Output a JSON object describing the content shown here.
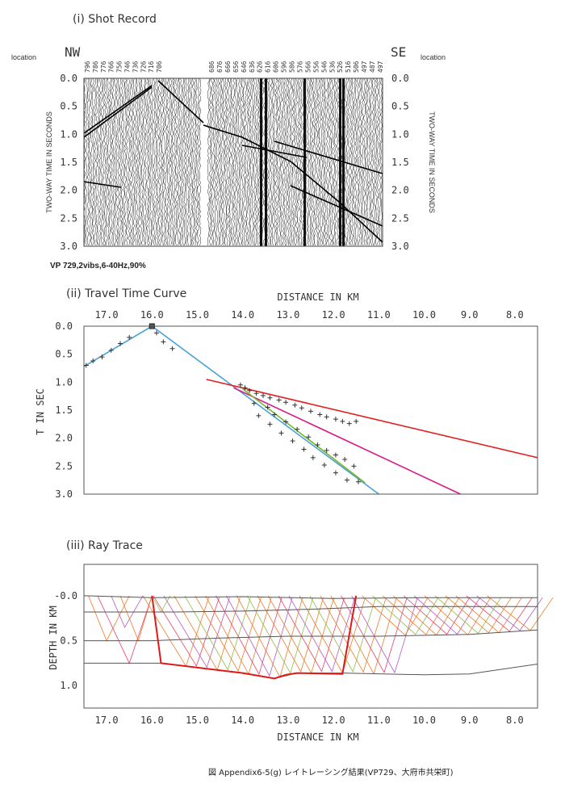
{
  "shot": {
    "title": "(i)  Shot Record",
    "nw": "NW",
    "se": "SE",
    "location_label": "location",
    "station_labels": [
      "796",
      "786",
      "776",
      "766",
      "756",
      "746",
      "736",
      "726",
      "716",
      "706",
      "686",
      "676",
      "666",
      "656",
      "646",
      "636",
      "626",
      "616",
      "606",
      "596",
      "586",
      "576",
      "566",
      "556",
      "546",
      "536",
      "526",
      "516",
      "506",
      "497",
      "487",
      "497"
    ],
    "time_ticks": [
      "0.0",
      "0.5",
      "1.0",
      "1.5",
      "2.0",
      "2.5",
      "3.0"
    ],
    "ylabel": "TWO-WAY TIME IN SECONDS",
    "vp_info": "VP 729,2vibs,6-40Hz,90%"
  },
  "chart_data": [
    {
      "type": "line",
      "title": "(ii)  Travel Time Curve",
      "xlabel": "DISTANCE IN KM",
      "ylabel": "T IN SEC",
      "x_ticks": [
        "17.0",
        "16.0",
        "15.0",
        "14.0",
        "13.0",
        "12.0",
        "11.0",
        "10.0",
        "9.0",
        "8.0"
      ],
      "y_ticks": [
        "0.0",
        "0.5",
        "1.0",
        "1.5",
        "2.0",
        "2.5",
        "3.0"
      ],
      "xlim": [
        17.5,
        7.5
      ],
      "ylim": [
        0,
        3.0
      ],
      "source_x": 16.0,
      "series": [
        {
          "color": "#4aa3d8",
          "x": [
            17.5,
            16.0,
            11.0
          ],
          "y": [
            0.72,
            0.0,
            3.0
          ],
          "note_points": "direct"
        },
        {
          "color": "#e02020",
          "x": [
            14.8,
            7.5
          ],
          "y": [
            0.95,
            2.35
          ]
        },
        {
          "color": "#d81b8a",
          "x": [
            14.2,
            9.2
          ],
          "y": [
            1.1,
            3.0
          ]
        },
        {
          "color": "#77b82a",
          "x": [
            14.0,
            11.3
          ],
          "y": [
            1.12,
            2.8
          ]
        }
      ],
      "observed": {
        "x": [
          17.45,
          17.3,
          17.1,
          16.9,
          16.7,
          16.5,
          15.9,
          15.75,
          15.55,
          14.05,
          13.95,
          13.85,
          13.7,
          13.55,
          13.4,
          13.2,
          13.05,
          12.85,
          12.7,
          12.5,
          12.3,
          12.15,
          11.95,
          11.8,
          11.65,
          11.5,
          13.75,
          13.45,
          13.3,
          13.05,
          12.8,
          12.55,
          12.35,
          12.15,
          11.95,
          11.75,
          11.55,
          13.65,
          13.4,
          13.15,
          12.9,
          12.65,
          12.45,
          12.2,
          11.95,
          11.7,
          11.45
        ],
        "y": [
          0.7,
          0.62,
          0.55,
          0.43,
          0.31,
          0.2,
          0.12,
          0.28,
          0.4,
          1.05,
          1.1,
          1.15,
          1.2,
          1.24,
          1.28,
          1.32,
          1.36,
          1.41,
          1.46,
          1.52,
          1.58,
          1.62,
          1.66,
          1.7,
          1.74,
          1.7,
          1.38,
          1.45,
          1.58,
          1.71,
          1.84,
          1.98,
          2.12,
          2.22,
          2.3,
          2.38,
          2.5,
          1.6,
          1.75,
          1.91,
          2.05,
          2.2,
          2.35,
          2.48,
          2.62,
          2.75,
          2.78
        ]
      }
    }
  ],
  "ray": {
    "title": "(iii)  Ray Trace",
    "ylabel": "DEPTH IN KM",
    "xlabel": "DISTANCE IN KM",
    "x_ticks": [
      "17.0",
      "16.0",
      "15.0",
      "14.0",
      "13.0",
      "12.0",
      "11.0",
      "10.0",
      "9.0",
      "8.0"
    ],
    "y_ticks": [
      "-0.0",
      "0.5",
      "1.0"
    ],
    "xlim": [
      17.5,
      7.5
    ],
    "ylim": [
      -0.35,
      1.25
    ],
    "surface": {
      "x": [
        17.5,
        16.0,
        14.0,
        12.0,
        10.0,
        7.5
      ],
      "y": [
        0.0,
        0.02,
        0.01,
        0.03,
        0.02,
        0.02
      ]
    },
    "layer1": {
      "x": [
        17.5,
        15.5,
        14.0,
        12.5,
        11.0,
        9.0,
        7.5
      ],
      "y": [
        0.18,
        0.18,
        0.17,
        0.15,
        0.12,
        0.12,
        0.12
      ]
    },
    "layer2": {
      "x": [
        17.5,
        16.0,
        14.5,
        13.0,
        11.0,
        9.0,
        7.5
      ],
      "y": [
        0.5,
        0.5,
        0.47,
        0.45,
        0.45,
        0.43,
        0.38
      ]
    },
    "layer3": {
      "x": [
        17.5,
        15.8,
        14.0,
        13.3,
        12.8,
        11.8,
        10.0,
        9.0,
        7.5
      ],
      "y": [
        0.75,
        0.75,
        0.86,
        0.92,
        0.86,
        0.86,
        0.88,
        0.87,
        0.76
      ]
    },
    "reflector": {
      "x": [
        16.0,
        15.8,
        14.0,
        13.3,
        13.05,
        12.8,
        11.8,
        11.5
      ],
      "y": [
        0.0,
        0.75,
        0.86,
        0.92,
        0.88,
        0.86,
        0.87,
        0.0
      ]
    }
  },
  "caption": "図 Appendix6-5(g)  レイトレーシング結果(VP729、大府市共栄町)"
}
